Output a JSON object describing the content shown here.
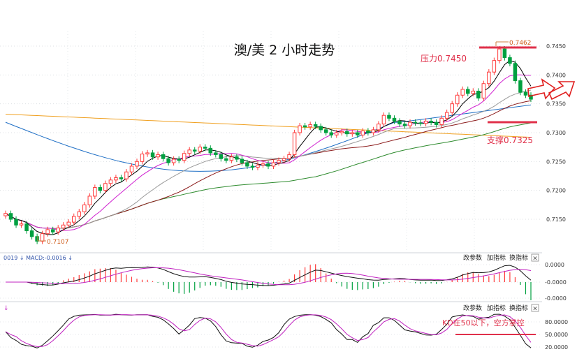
{
  "chart_data": [
    {
      "type": "candlestick",
      "title": "澳/美 2 小时走势",
      "y_ticks": [
        "0.7450",
        "0.7400",
        "0.7350",
        "0.7300",
        "0.7250",
        "0.7200",
        "0.7150"
      ],
      "ylim": [
        0.7095,
        0.7475
      ],
      "high_marker": "0.7462",
      "low_marker": "0.7107",
      "annotations": {
        "resistance": "压力0.7450",
        "support": "支撑0.7325"
      },
      "resistance_value": 0.745,
      "support_value": 0.7325,
      "series": {
        "closes": [
          0.716,
          0.715,
          0.714,
          0.7142,
          0.713,
          0.712,
          0.7112,
          0.7125,
          0.7132,
          0.7128,
          0.7135,
          0.714,
          0.7145,
          0.7155,
          0.7163,
          0.7175,
          0.719,
          0.7205,
          0.72,
          0.7212,
          0.7218,
          0.7222,
          0.722,
          0.7232,
          0.7242,
          0.725,
          0.7263,
          0.7265,
          0.7258,
          0.7262,
          0.7255,
          0.7248,
          0.7254,
          0.7252,
          0.7264,
          0.727,
          0.7268,
          0.7275,
          0.7273,
          0.7265,
          0.7262,
          0.7255,
          0.7252,
          0.7258,
          0.7254,
          0.7248,
          0.7242,
          0.724,
          0.7244,
          0.7246,
          0.7242,
          0.7248,
          0.7252,
          0.7255,
          0.7262,
          0.73,
          0.7312,
          0.731,
          0.7314,
          0.7311,
          0.7305,
          0.73,
          0.7296,
          0.73,
          0.7302,
          0.7298,
          0.73,
          0.7296,
          0.7303,
          0.73,
          0.7305,
          0.7315,
          0.733,
          0.7325,
          0.732,
          0.7315,
          0.7312,
          0.7318,
          0.7317,
          0.7316,
          0.732,
          0.7318,
          0.7314,
          0.7325,
          0.7335,
          0.735,
          0.7365,
          0.7375,
          0.7368,
          0.7372,
          0.736,
          0.7385,
          0.7405,
          0.7425,
          0.7445,
          0.743,
          0.742,
          0.739,
          0.737,
          0.7365,
          0.7358
        ]
      }
    },
    {
      "type": "line",
      "name": "MACD",
      "header": "0019 ↓  MACD:-0.0016 ↓",
      "y_ticks": [
        "0.0000",
        "-0.0000",
        "-0.0000"
      ],
      "buttons": [
        "改参数",
        "加指标",
        "换指标"
      ],
      "close_label": "×"
    },
    {
      "type": "line",
      "name": "KD",
      "header": "↓",
      "y_ticks": [
        "80.0000",
        "50.0000",
        "20.0000"
      ],
      "buttons": [
        "改参数",
        "加指标",
        "换指标"
      ],
      "close_label": "×",
      "annotation": "KD在50以下，空方掌控",
      "line_value": 50
    }
  ],
  "colors": {
    "up": "#ff3b3b",
    "down": "#00a040",
    "annotation": "#e0304a",
    "ma5": "#000000",
    "ma10": "#d020d0",
    "ma20": "#999999",
    "ma30": "#8b1a1a",
    "ma60": "#2e8b2e",
    "ma120": "#1f6fc5",
    "ma250": "#f0a020",
    "arrow": "#e02020"
  }
}
